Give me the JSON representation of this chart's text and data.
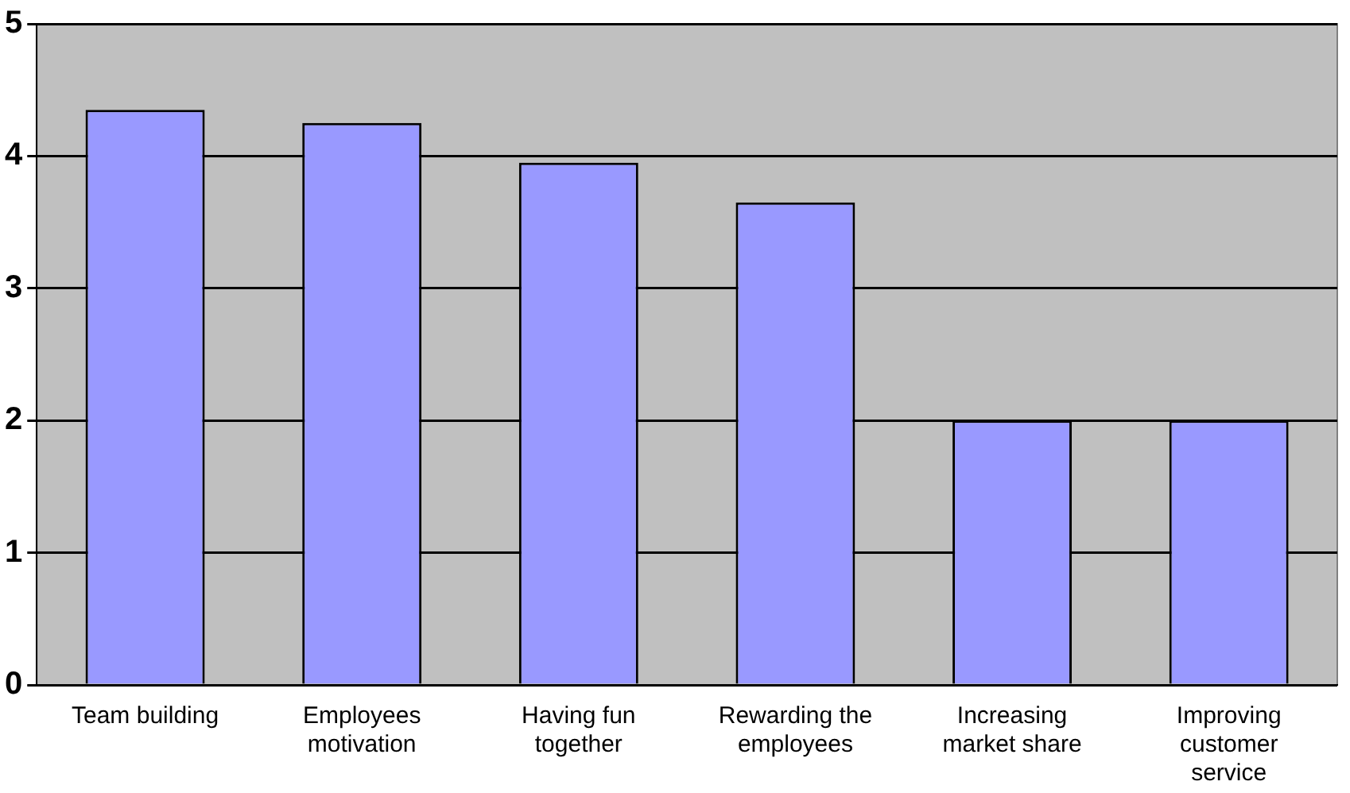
{
  "chart_data": {
    "type": "bar",
    "categories": [
      "Team building",
      "Employees motivation",
      "Having fun together",
      "Rewarding the employees",
      "Increasing market share",
      "Improving customer service"
    ],
    "values": [
      4.35,
      4.25,
      3.95,
      3.65,
      2,
      2
    ],
    "color": "#9999ff",
    "ylim": [
      0,
      5
    ],
    "yticks": [
      0,
      1,
      2,
      3,
      4,
      5
    ],
    "grid": "y",
    "legend": false
  }
}
